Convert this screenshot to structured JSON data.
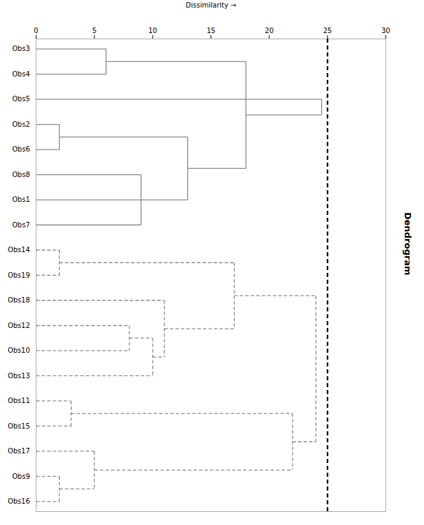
{
  "chart_data": {
    "type": "dendrogram",
    "xlabel": "Dissimilarity",
    "annotations": [
      "Dendrogram"
    ],
    "categories": [
      "Obs3",
      "Obs4",
      "Obs5",
      "Obs2",
      "Obs6",
      "Obs8",
      "Obs1",
      "Obs7",
      "Obs14",
      "Obs19",
      "Obs18",
      "Obs12",
      "Obs10",
      "Obs13",
      "Obs11",
      "Obs15",
      "Obs17",
      "Obs9",
      "Obs16"
    ],
    "xlim": [
      0,
      30
    ],
    "xticks": [
      0,
      5,
      10,
      15,
      20,
      25,
      30
    ],
    "grid": false,
    "cutoff_x": 25,
    "cutoff_color": "#000000",
    "series": [
      {
        "line_style": "solid",
        "color": "#888888",
        "merges": [
          {
            "members": [
              "Obs3",
              "Obs4"
            ],
            "height": 6
          },
          {
            "members": [
              "Obs2",
              "Obs6"
            ],
            "height": 2
          },
          {
            "members": [
              "Obs8",
              "Obs1",
              "Obs7"
            ],
            "height": 9
          },
          {
            "members": [
              1,
              2
            ],
            "height": 13
          },
          {
            "members": [
              0,
              3
            ],
            "height": 18
          },
          {
            "members": [
              "Obs5",
              4
            ],
            "height": 24.5
          }
        ]
      },
      {
        "line_style": "dashed",
        "color": "#888888",
        "merges": [
          {
            "members": [
              "Obs14",
              "Obs19"
            ],
            "height": 2
          },
          {
            "members": [
              "Obs12",
              "Obs10"
            ],
            "height": 8
          },
          {
            "members": [
              1,
              "Obs13"
            ],
            "height": 10
          },
          {
            "members": [
              "Obs18",
              2
            ],
            "height": 11
          },
          {
            "members": [
              0,
              3
            ],
            "height": 17
          },
          {
            "members": [
              "Obs11",
              "Obs15"
            ],
            "height": 3
          },
          {
            "members": [
              "Obs9",
              "Obs16"
            ],
            "height": 2
          },
          {
            "members": [
              "Obs17",
              6
            ],
            "height": 5
          },
          {
            "members": [
              5,
              7
            ],
            "height": 22
          },
          {
            "members": [
              4,
              8
            ],
            "height": 24
          }
        ]
      }
    ]
  }
}
